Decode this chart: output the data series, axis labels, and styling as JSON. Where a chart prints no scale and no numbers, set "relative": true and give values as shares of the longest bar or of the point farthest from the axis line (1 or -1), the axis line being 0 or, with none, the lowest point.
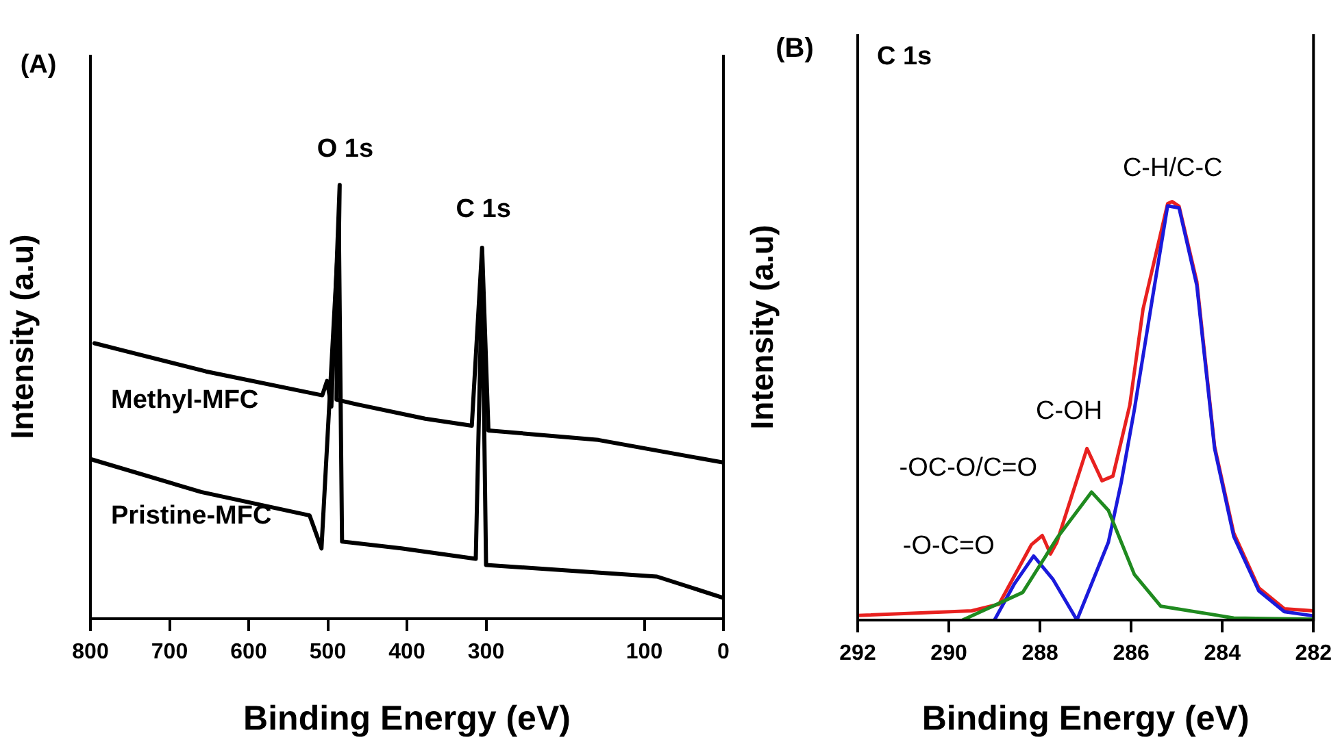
{
  "chart_data": [
    {
      "type": "line",
      "xlabel": "Binding Energy (eV)",
      "ylabel": "Intensity (a.u)",
      "relative": true,
      "marker": "none",
      "legend": false,
      "grid": false,
      "xlim": [
        800,
        0
      ],
      "xticks": [
        800,
        700,
        600,
        500,
        400,
        300,
        100,
        0
      ],
      "annotations": [
        "(A)",
        {
          "text": "O 1s",
          "x": 485,
          "y": 1.0
        },
        {
          "text": "C 1s",
          "x": 305,
          "y": 0.855
        }
      ],
      "series": [
        {
          "name": "Methyl-MFC",
          "color": "#000000",
          "x": [
            795,
            654,
            507,
            501,
            495.5,
            485,
            489,
            463,
            377,
            318,
            305,
            297,
            158,
            0
          ],
          "values": [
            0.635,
            0.57,
            0.515,
            0.548,
            0.489,
            1.0,
            0.505,
            0.494,
            0.461,
            0.445,
            0.855,
            0.434,
            0.412,
            0.36
          ]
        },
        {
          "name": "Pristine-MFC",
          "color": "#000000",
          "x": [
            800,
            660,
            523,
            508,
            486,
            482,
            407,
            313,
            305,
            300,
            84,
            0
          ],
          "values": [
            0.368,
            0.292,
            0.238,
            0.162,
            0.9,
            0.178,
            0.162,
            0.138,
            0.8,
            0.124,
            0.097,
            0.048
          ]
        }
      ]
    },
    {
      "type": "line",
      "xlabel": "Binding Energy (eV)",
      "ylabel": "Intensity (a.u)",
      "relative": true,
      "marker": "none",
      "legend": false,
      "grid": false,
      "xlim": [
        292,
        282
      ],
      "xticks": [
        292,
        290,
        288,
        286,
        284,
        282
      ],
      "annotations": [
        "(B)",
        "C 1s",
        {
          "text": "C-H/C-C",
          "x": 285.15,
          "y": 1.0
        },
        {
          "text": "C-OH",
          "x": 286.97,
          "y": 0.41
        },
        {
          "text": "-OC-O/C=O",
          "x": 286.87,
          "y": 0.306
        },
        {
          "text": "-O-C=O",
          "x": 288.14,
          "y": 0.153
        }
      ],
      "series": [
        {
          "color": "#1f8a1f",
          "x": [
            289.7,
            288.38,
            287.62,
            286.87,
            286.5,
            285.93,
            285.35,
            283.75,
            282
          ],
          "values": [
            0,
            0.066,
            0.197,
            0.306,
            0.262,
            0.109,
            0.033,
            0.005,
            0.002
          ]
        },
        {
          "color": "#1a1adb",
          "x": [
            289.0,
            288.56,
            288.14,
            287.72,
            287.19,
            286.5,
            286.22,
            285.93,
            285.54,
            285.2,
            284.95,
            284.56,
            284.17,
            283.75,
            283.2,
            282.64,
            282
          ],
          "values": [
            0,
            0.087,
            0.153,
            0.098,
            0,
            0.186,
            0.328,
            0.503,
            0.765,
            0.99,
            0.985,
            0.8,
            0.41,
            0.2,
            0.07,
            0.02,
            0.01
          ]
        },
        {
          "color": "#e8211f",
          "x": [
            292,
            289.5,
            288.9,
            288.19,
            287.95,
            287.77,
            287.63,
            286.97,
            286.64,
            286.4,
            286.03,
            285.74,
            285.2,
            285.1,
            284.95,
            284.56,
            284.17,
            283.75,
            283.2,
            282.64,
            282
          ],
          "values": [
            0.011,
            0.022,
            0.038,
            0.18,
            0.202,
            0.158,
            0.186,
            0.41,
            0.333,
            0.344,
            0.514,
            0.743,
            0.995,
            1.0,
            0.989,
            0.809,
            0.415,
            0.208,
            0.077,
            0.027,
            0.022
          ]
        }
      ]
    }
  ]
}
